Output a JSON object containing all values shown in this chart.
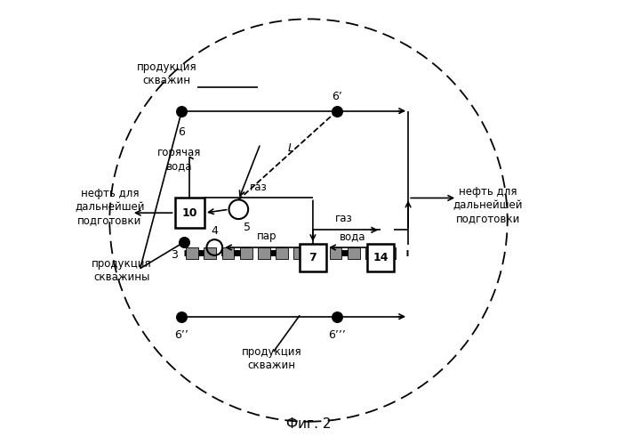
{
  "fig_width": 6.94,
  "fig_height": 5.0,
  "dpi": 100,
  "bg_color": "#ffffff",
  "title": "Фиг. 2",
  "node_6_label": "6",
  "node_6p_label": "6’",
  "node_6pp_label": "6’’",
  "node_6ppp_label": "6’’’",
  "prod_top": "продукция\nскважин",
  "hot_water": "горячая\nвода",
  "oil_left": "нефть для\nдальнейшей\nподготовки",
  "oil_right": "нефть для\nдальнейшей\nподготовки",
  "prod_well": "продукция\nскважины",
  "prod_bot": "продукция\nскважин",
  "gas_label": "газ",
  "par_label": "пар",
  "voda_label": "вода",
  "L_label": "L"
}
